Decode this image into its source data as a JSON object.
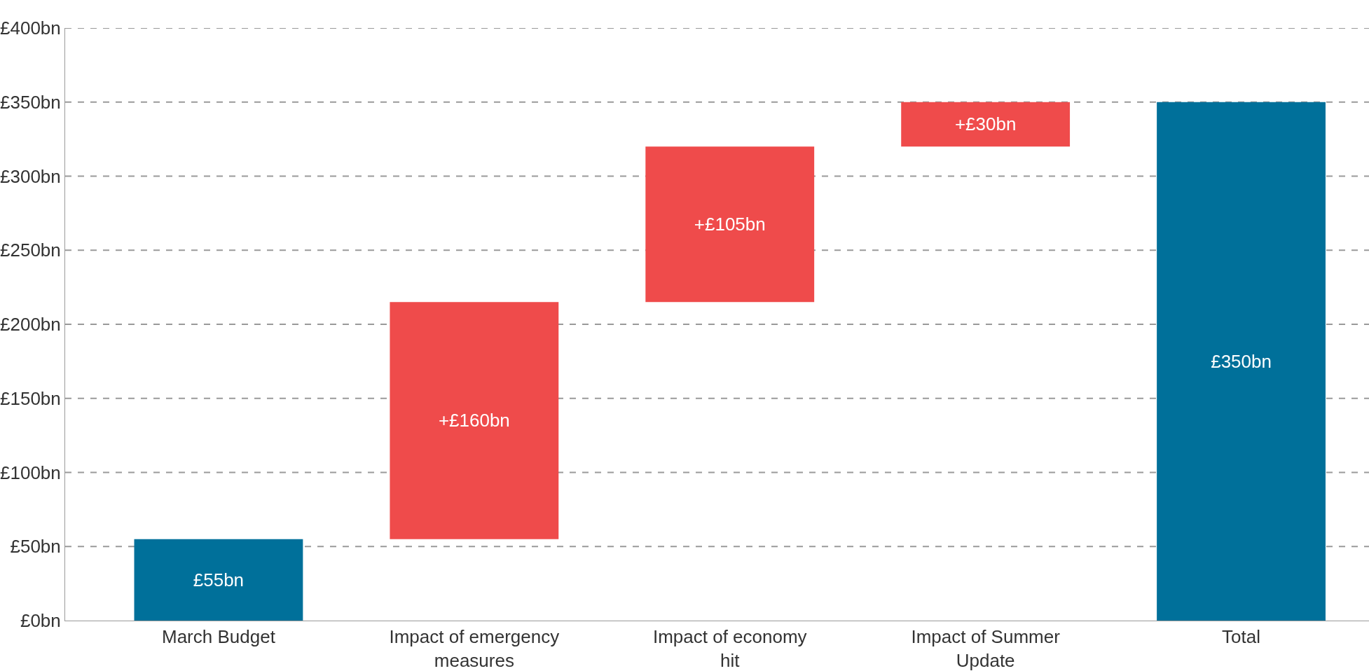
{
  "chart_data": {
    "type": "bar",
    "categories": [
      "March Budget",
      "Impact of emergency measures",
      "Impact of economy hit",
      "Impact of Summer Update",
      "Total"
    ],
    "values": [
      55,
      160,
      105,
      30,
      350
    ],
    "base": [
      0,
      55,
      215,
      320,
      0
    ],
    "colors": [
      "#00709a",
      "#ef4b4b",
      "#ef4b4b",
      "#ef4b4b",
      "#00709a"
    ],
    "value_labels": [
      "£55bn",
      "+£160bn",
      "+£105bn",
      "+£30bn",
      "£350bn"
    ],
    "ylim": [
      0,
      400
    ],
    "yticks": [
      {
        "value": 0,
        "label": "£0bn"
      },
      {
        "value": 50,
        "label": "£50bn"
      },
      {
        "value": 100,
        "label": "£100bn"
      },
      {
        "value": 150,
        "label": "£150bn"
      },
      {
        "value": 200,
        "label": "£200bn"
      },
      {
        "value": 250,
        "label": "£250bn"
      },
      {
        "value": 300,
        "label": "£300bn"
      },
      {
        "value": 350,
        "label": "£350bn"
      },
      {
        "value": 400,
        "label": "£400bn"
      }
    ],
    "grid": "y",
    "line_style": "dashed"
  }
}
